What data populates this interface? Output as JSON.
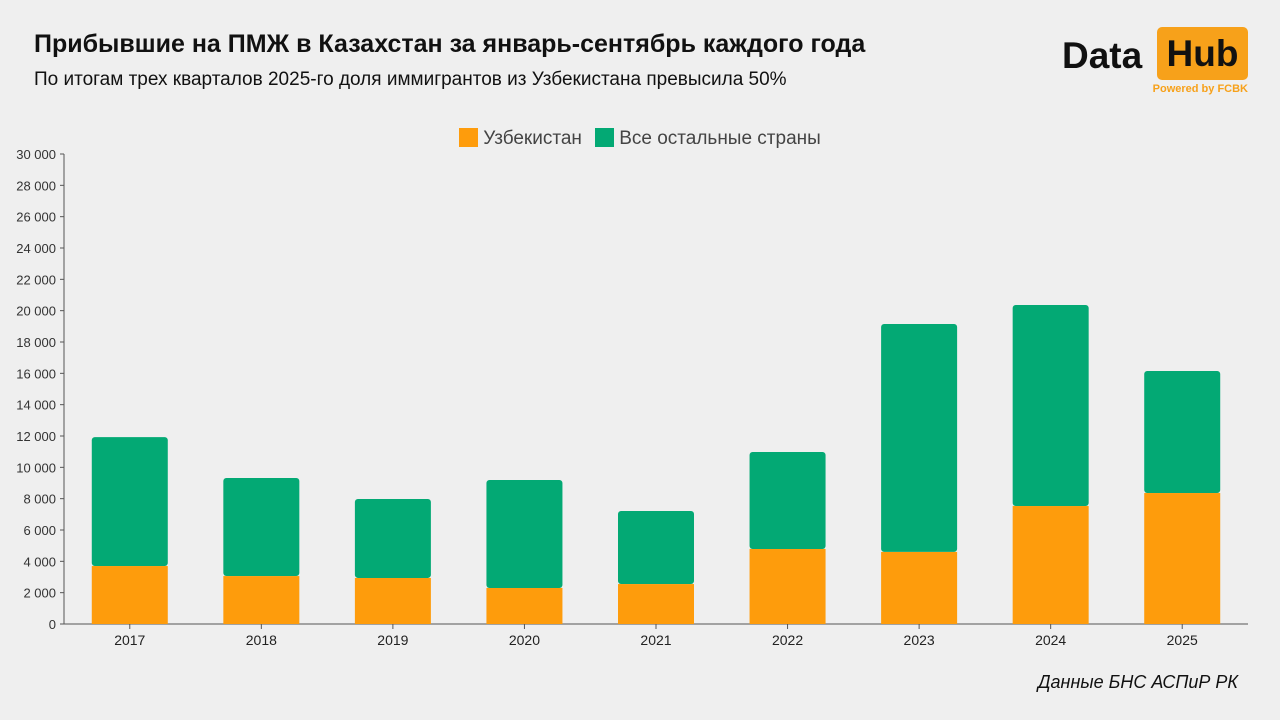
{
  "header": {
    "title": "Прибывшие на ПМЖ в Казахстан за январь-сентябрь каждого года",
    "subtitle": "По итогам трех кварталов 2025-го доля иммигрантов из Узбекистана превысила 50%"
  },
  "logo": {
    "word1": "Data",
    "word2": "Hub",
    "powered": "Powered by FCBK",
    "accent": "#f7a11a"
  },
  "source": "Данные БНС АСПиР РК",
  "chart_data": {
    "type": "bar",
    "stacked": true,
    "categories": [
      "2017",
      "2018",
      "2019",
      "2020",
      "2021",
      "2022",
      "2023",
      "2024",
      "2025"
    ],
    "series": [
      {
        "name": "Узбекистан",
        "color": "#fe9c0c",
        "values": [
          3700,
          3060,
          2940,
          2300,
          2550,
          4790,
          4600,
          7530,
          8360
        ]
      },
      {
        "name": "Все остальные страны",
        "color": "#03a974",
        "values": [
          8230,
          6260,
          5040,
          6890,
          4660,
          6190,
          14550,
          12830,
          7790
        ]
      }
    ],
    "ylim": [
      0,
      30000
    ],
    "yticks": [
      "0",
      "2 000",
      "4 000",
      "6 000",
      "8 000",
      "10 000",
      "12 000",
      "14 000",
      "16 000",
      "18 000",
      "20 000",
      "22 000",
      "24 000",
      "26 000",
      "28 000",
      "30 000"
    ],
    "legend": "top-center",
    "grid": false
  }
}
